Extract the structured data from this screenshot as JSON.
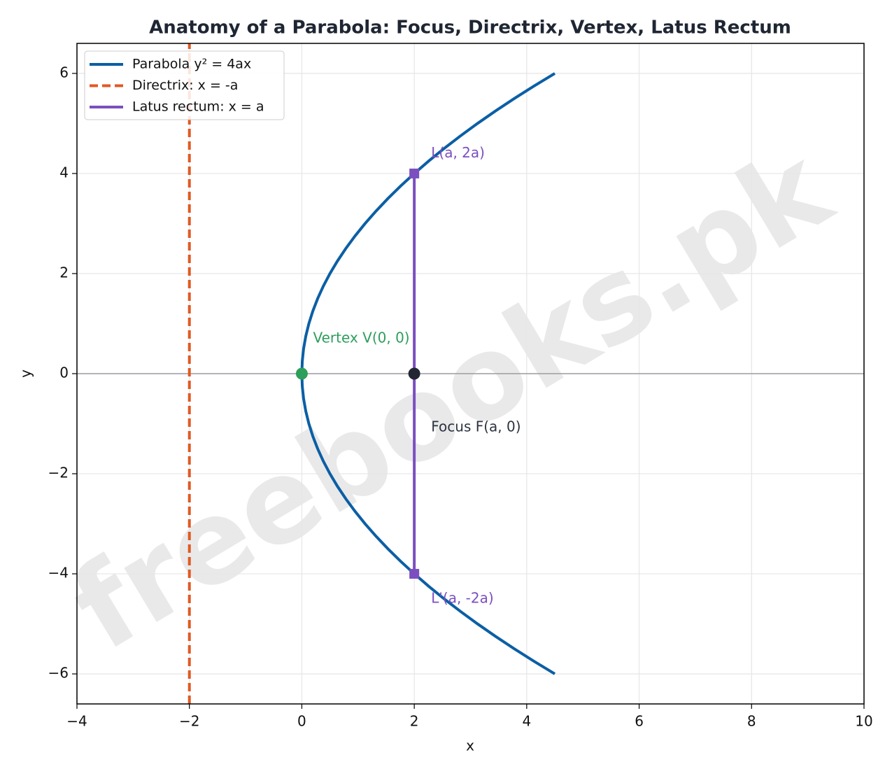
{
  "chart_data": {
    "type": "line",
    "title": "Anatomy of a Parabola: Focus, Directrix, Vertex, Latus Rectum",
    "x_label": "x",
    "y_label": "y",
    "watermark": "freebooks.pk",
    "xlim": [
      -4,
      10
    ],
    "ylim": [
      -6.6,
      6.6
    ],
    "xticks": [
      {
        "value": -4,
        "label": "−4"
      },
      {
        "value": -2,
        "label": "−2"
      },
      0,
      2,
      4,
      6,
      8,
      10
    ],
    "yticks": [
      {
        "value": -6,
        "label": "−6"
      },
      {
        "value": -4,
        "label": "−4"
      },
      {
        "value": -2,
        "label": "−2"
      },
      0,
      2,
      4,
      6
    ],
    "grid": true,
    "legend": "upper left",
    "series": [
      {
        "name": "Parabola y² = 4ax",
        "color": "#0b5fa5",
        "linestyle": "solid",
        "x": [
          4.5,
          4.1328,
          3.78125,
          3.4453,
          3.125,
          2.8203,
          2.53125,
          2.2578,
          2,
          1.7578,
          1.53125,
          1.3203,
          1.125,
          0.9453,
          0.78125,
          0.6328,
          0.5,
          0.3828,
          0.28125,
          0.1953,
          0.125,
          0.0703,
          0.03125,
          0.0078,
          0,
          0.0078,
          0.03125,
          0.0703,
          0.125,
          0.1953,
          0.28125,
          0.3828,
          0.5,
          0.6328,
          0.78125,
          0.9453,
          1.125,
          1.3203,
          1.53125,
          1.7578,
          2,
          2.2578,
          2.53125,
          2.8203,
          3.125,
          3.4453,
          3.78125,
          4.1328,
          4.5
        ],
        "y": [
          -6,
          -5.75,
          -5.5,
          -5.25,
          -5,
          -4.75,
          -4.5,
          -4.25,
          -4,
          -3.75,
          -3.5,
          -3.25,
          -3,
          -2.75,
          -2.5,
          -2.25,
          -2,
          -1.75,
          -1.5,
          -1.25,
          -1,
          -0.75,
          -0.5,
          -0.25,
          0,
          0.25,
          0.5,
          0.75,
          1,
          1.25,
          1.5,
          1.75,
          2,
          2.25,
          2.5,
          2.75,
          3,
          3.25,
          3.5,
          3.75,
          4,
          4.25,
          4.5,
          4.75,
          5,
          5.25,
          5.5,
          5.75,
          6
        ]
      },
      {
        "name": "Directrix: x = -a",
        "color": "#e05a24",
        "linestyle": "dashed",
        "x": [
          -2,
          -2
        ],
        "y": [
          -6.6,
          6.6
        ]
      },
      {
        "name": "Latus rectum: x = a",
        "color": "#7b4fbf",
        "linestyle": "solid",
        "marker": "square",
        "x": [
          2,
          2
        ],
        "y": [
          -4,
          4
        ]
      }
    ],
    "points": [
      {
        "x": 0,
        "y": 0,
        "color": "#2e9e5b"
      },
      {
        "x": 2,
        "y": 0,
        "color": "#222733"
      }
    ],
    "annotations": [
      {
        "text": "L(a, 2a)",
        "x": 2.3,
        "y": 4.4,
        "color": "#7b4fbf"
      },
      {
        "text": "L'(a, -2a)",
        "x": 2.3,
        "y": -4.5,
        "color": "#7b4fbf"
      },
      {
        "text": "Vertex V(0, 0)",
        "x": 0.2,
        "y": 0.7,
        "color": "#2e9e5b"
      },
      {
        "text": "Focus F(a, 0)",
        "x": 2.3,
        "y": -1.08,
        "color": "#2d3340"
      }
    ]
  }
}
